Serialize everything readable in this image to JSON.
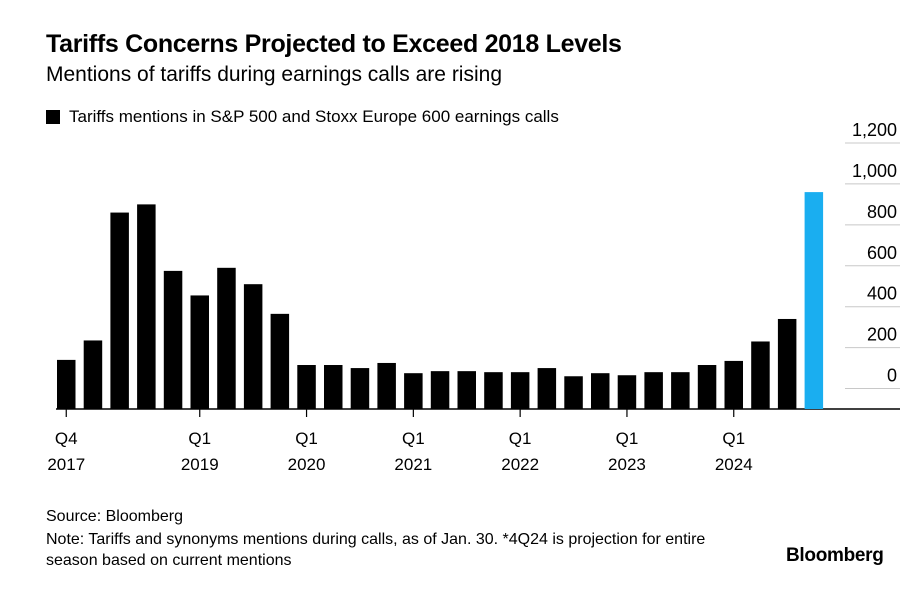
{
  "header": {
    "title": "Tariffs Concerns Projected to Exceed 2018 Levels",
    "subtitle": "Mentions of tariffs during earnings calls are rising"
  },
  "legend": {
    "label": "Tariffs mentions in S&P 500 and Stoxx Europe 600 earnings calls"
  },
  "footer": {
    "source": "Source: Bloomberg",
    "note": "Note: Tariffs and synonyms mentions during calls, as of Jan. 30. *4Q24 is projection for entire season based on current mentions",
    "brand": "Bloomberg"
  },
  "chart_data": {
    "type": "bar",
    "categories": [
      "Q4 2017",
      "Q1 2018",
      "Q2 2018",
      "Q3 2018",
      "Q4 2018",
      "Q1 2019",
      "Q2 2019",
      "Q3 2019",
      "Q4 2019",
      "Q1 2020",
      "Q2 2020",
      "Q3 2020",
      "Q4 2020",
      "Q1 2021",
      "Q2 2021",
      "Q3 2021",
      "Q4 2021",
      "Q1 2022",
      "Q2 2022",
      "Q3 2022",
      "Q4 2022",
      "Q1 2023",
      "Q2 2023",
      "Q3 2023",
      "Q4 2023",
      "Q1 2024",
      "Q2 2024",
      "Q3 2024",
      "Q4 2024"
    ],
    "values": [
      140,
      235,
      860,
      900,
      575,
      455,
      590,
      510,
      365,
      115,
      115,
      100,
      125,
      75,
      85,
      85,
      80,
      80,
      100,
      60,
      75,
      65,
      80,
      80,
      115,
      135,
      230,
      340,
      960
    ],
    "highlight_index": 28,
    "colors": {
      "default": "#000000",
      "highlight": "#1aaef0",
      "grid": "#c8c8c8"
    },
    "ylim": [
      -100,
      1200
    ],
    "yticks": [
      0,
      200,
      400,
      600,
      800,
      "1,000",
      "1,200"
    ],
    "ytick_values": [
      0,
      200,
      400,
      600,
      800,
      1000,
      1200
    ],
    "x_ticks": [
      {
        "index": 0,
        "q": "Q4",
        "year": "2017"
      },
      {
        "index": 5,
        "q": "Q1",
        "year": "2019"
      },
      {
        "index": 9,
        "q": "Q1",
        "year": "2020"
      },
      {
        "index": 13,
        "q": "Q1",
        "year": "2021"
      },
      {
        "index": 17,
        "q": "Q1",
        "year": "2022"
      },
      {
        "index": 21,
        "q": "Q1",
        "year": "2023"
      },
      {
        "index": 25,
        "q": "Q1",
        "year": "2024"
      }
    ],
    "y_axis_side": "right",
    "grid": true,
    "legend_position": "top-left"
  }
}
